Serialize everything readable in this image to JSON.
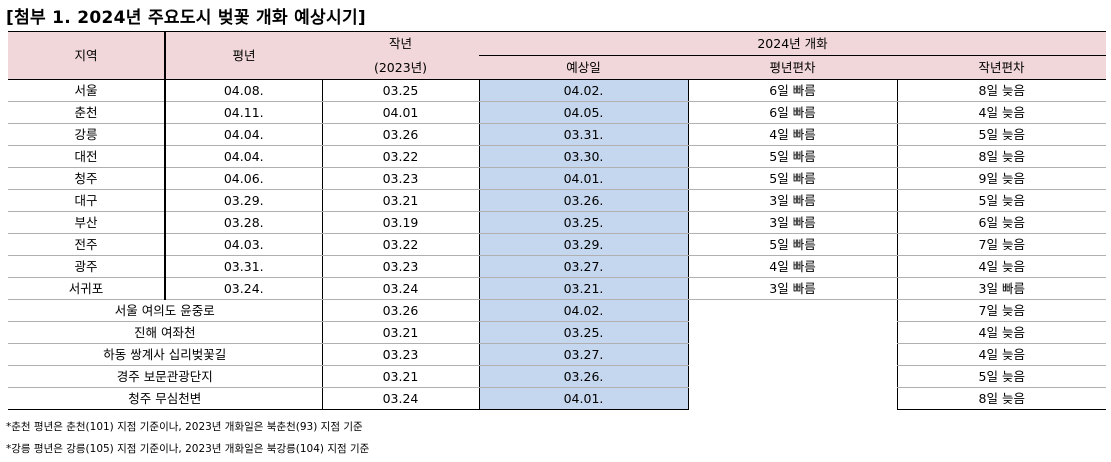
{
  "title": "[첨부 1. 2024년 주요도시 벚꽃 개화 예상시기]",
  "headers": {
    "region": "지역",
    "normal": "평년",
    "last_year_line1": "작년",
    "last_year_line2": "(2023년)",
    "group": "2024년 개화",
    "expected": "예상일",
    "diff_normal": "평년편차",
    "diff_last": "작년편차"
  },
  "cities": [
    {
      "region": "서울",
      "normal": "04.08.",
      "last": "03.25",
      "expected": "04.02.",
      "diff_normal": "6일 빠름",
      "diff_last": "8일 늦음"
    },
    {
      "region": "춘천",
      "normal": "04.11.",
      "last": "04.01",
      "expected": "04.05.",
      "diff_normal": "6일 빠름",
      "diff_last": "4일 늦음"
    },
    {
      "region": "강릉",
      "normal": "04.04.",
      "last": "03.26",
      "expected": "03.31.",
      "diff_normal": "4일 빠름",
      "diff_last": "5일 늦음"
    },
    {
      "region": "대전",
      "normal": "04.04.",
      "last": "03.22",
      "expected": "03.30.",
      "diff_normal": "5일 빠름",
      "diff_last": "8일 늦음"
    },
    {
      "region": "청주",
      "normal": "04.06.",
      "last": "03.23",
      "expected": "04.01.",
      "diff_normal": "5일 빠름",
      "diff_last": "9일 늦음"
    },
    {
      "region": "대구",
      "normal": "03.29.",
      "last": "03.21",
      "expected": "03.26.",
      "diff_normal": "3일 빠름",
      "diff_last": "5일 늦음"
    },
    {
      "region": "부산",
      "normal": "03.28.",
      "last": "03.19",
      "expected": "03.25.",
      "diff_normal": "3일 빠름",
      "diff_last": "6일 늦음"
    },
    {
      "region": "전주",
      "normal": "04.03.",
      "last": "03.22",
      "expected": "03.29.",
      "diff_normal": "5일 빠름",
      "diff_last": "7일 늦음"
    },
    {
      "region": "광주",
      "normal": "03.31.",
      "last": "03.23",
      "expected": "03.27.",
      "diff_normal": "4일 빠름",
      "diff_last": "4일 늦음"
    },
    {
      "region": "서귀포",
      "normal": "03.24.",
      "last": "03.24",
      "expected": "03.21.",
      "diff_normal": "3일 빠름",
      "diff_last": "3일 빠름"
    }
  ],
  "spots": [
    {
      "region": "서울 여의도 윤중로",
      "last": "03.26",
      "expected": "04.02.",
      "diff_last": "7일 늦음"
    },
    {
      "region": "진해 여좌천",
      "last": "03.21",
      "expected": "03.25.",
      "diff_last": "4일 늦음"
    },
    {
      "region": "하동 쌍계사 십리벚꽃길",
      "last": "03.23",
      "expected": "03.27.",
      "diff_last": "4일 늦음"
    },
    {
      "region": "경주 보문관광단지",
      "last": "03.21",
      "expected": "03.26.",
      "diff_last": "5일 늦음"
    },
    {
      "region": "청주 무심천변",
      "last": "03.24",
      "expected": "04.01.",
      "diff_last": "8일 늦음"
    }
  ],
  "notes": [
    "*춘천 평년은 춘천(101) 지점 기준이나, 2023년 개화일은 북춘천(93) 지점 기준",
    "*강릉 평년은 강릉(105) 지점 기준이나, 2023년 개화일은 북강릉(104) 지점 기준"
  ]
}
